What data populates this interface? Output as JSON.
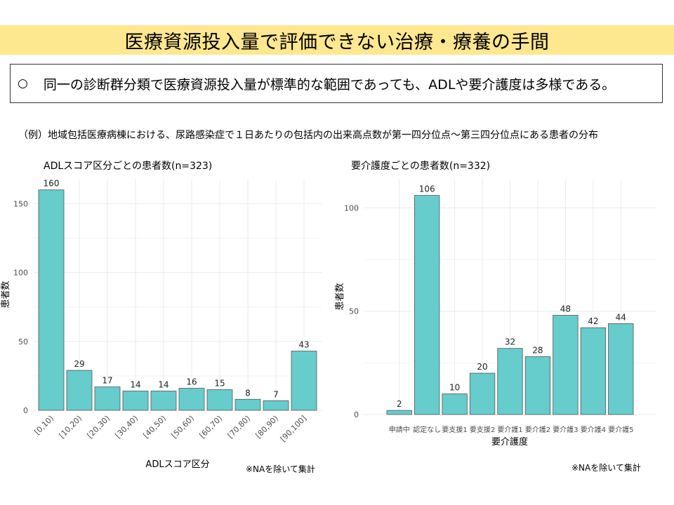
{
  "header": {
    "title": "医療資源投入量で評価できない治療・療養の手間"
  },
  "summary": {
    "bullet": "○",
    "text": "同一の診断群分類で医療資源投入量が標準的な範囲であっても、ADLや要介護度は多様である。"
  },
  "example_caption": "（例）地域包括医療病棟における、尿路感染症で１日あたりの包括内の出来高点数が第一四分位点～第三四分位点にある患者の分布",
  "colors": {
    "bar": "#66cccc",
    "bar_stroke": "#555555",
    "grid": "#ebebeb"
  },
  "chart_data": [
    {
      "type": "bar",
      "title": "ADLスコア区分ごとの患者数(n=323)",
      "xlabel": "ADLスコア区分",
      "ylabel": "患者数",
      "categories": [
        "[0,10)",
        "[10,20)",
        "[20,30)",
        "[30,40)",
        "[40,50)",
        "[50,60)",
        "[60,70)",
        "[70,80)",
        "[80,90)",
        "[90,100]"
      ],
      "values": [
        160,
        29,
        17,
        14,
        14,
        16,
        15,
        8,
        7,
        43
      ],
      "yticks": [
        0,
        50,
        100,
        150
      ],
      "ylim": [
        0,
        168
      ],
      "grid": true,
      "note": "※NAを除いて集計"
    },
    {
      "type": "bar",
      "title": "要介護度ごとの患者数(n=332)",
      "xlabel": "要介護度",
      "ylabel": "患者数",
      "categories": [
        "申請中",
        "認定なし",
        "要支援1",
        "要支援2",
        "要介護1",
        "要介護2",
        "要介護3",
        "要介護4",
        "要介護5"
      ],
      "values": [
        2,
        106,
        10,
        20,
        32,
        28,
        48,
        42,
        44
      ],
      "yticks": [
        0,
        50,
        100
      ],
      "ylim": [
        0,
        114
      ],
      "grid": true,
      "note": "※NAを除いて集計"
    }
  ]
}
